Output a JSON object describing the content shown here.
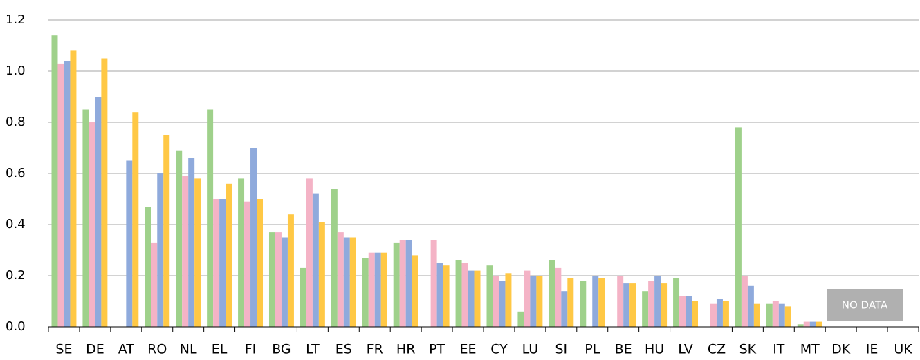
{
  "chart_data": {
    "type": "bar",
    "categories": [
      "SE",
      "DE",
      "AT",
      "RO",
      "NL",
      "EL",
      "FI",
      "BG",
      "LT",
      "ES",
      "FR",
      "HR",
      "PT",
      "EE",
      "CY",
      "LU",
      "SI",
      "PL",
      "BE",
      "HU",
      "LV",
      "CZ",
      "SK",
      "IT",
      "MT",
      "DK",
      "IE",
      "UK"
    ],
    "series": [
      {
        "color": "#9fd18b",
        "values": [
          1.14,
          0.85,
          null,
          0.47,
          0.69,
          0.85,
          0.58,
          0.37,
          0.23,
          0.54,
          0.27,
          0.33,
          null,
          0.26,
          0.24,
          0.06,
          0.26,
          0.18,
          null,
          0.14,
          0.19,
          null,
          0.78,
          0.09,
          0.01,
          null,
          null,
          null
        ]
      },
      {
        "color": "#f4b3c6",
        "values": [
          1.03,
          0.8,
          null,
          0.33,
          0.59,
          0.5,
          0.49,
          0.37,
          0.58,
          0.37,
          0.29,
          0.34,
          0.34,
          0.25,
          0.2,
          0.22,
          0.23,
          null,
          0.2,
          0.18,
          0.12,
          0.09,
          0.2,
          0.1,
          0.02,
          null,
          null,
          null
        ]
      },
      {
        "color": "#8faadc",
        "values": [
          1.04,
          0.9,
          0.65,
          0.6,
          0.66,
          0.5,
          0.7,
          0.35,
          0.52,
          0.35,
          0.29,
          0.34,
          0.25,
          0.22,
          0.18,
          0.2,
          0.14,
          0.2,
          0.17,
          0.2,
          0.12,
          0.11,
          0.16,
          0.09,
          0.02,
          null,
          null,
          null
        ]
      },
      {
        "color": "#ffc845",
        "values": [
          1.08,
          1.05,
          0.84,
          0.75,
          0.58,
          0.56,
          0.5,
          0.44,
          0.41,
          0.35,
          0.29,
          0.28,
          0.24,
          0.22,
          0.21,
          0.2,
          0.19,
          0.19,
          0.17,
          0.17,
          0.1,
          0.1,
          0.09,
          0.08,
          0.02,
          null,
          null,
          null
        ]
      }
    ],
    "ylim": [
      0,
      1.2
    ],
    "yticks": [
      {
        "value": 0,
        "label": "0.0"
      },
      0.2,
      0.4,
      0.6,
      0.8,
      {
        "value": 1,
        "label": "1.0"
      },
      1.2
    ],
    "grid": true,
    "annotation": "NO DATA"
  }
}
